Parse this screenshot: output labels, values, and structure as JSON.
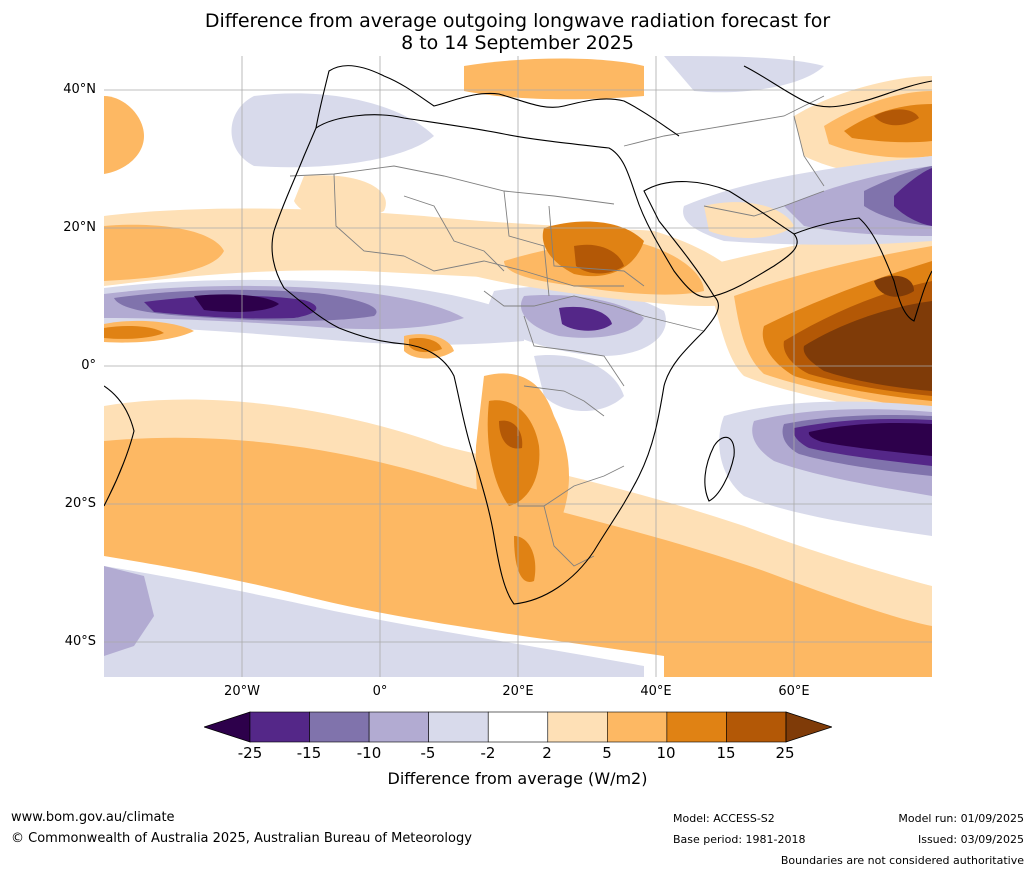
{
  "title": {
    "line1": "Difference from average outgoing longwave radiation forecast for",
    "line2": "8 to 14 September 2025"
  },
  "map": {
    "lat_labels": [
      "40°N",
      "20°N",
      "0°",
      "20°S",
      "40°S"
    ],
    "lon_labels": [
      "20°W",
      "0°",
      "20°E",
      "40°E",
      "60°E"
    ]
  },
  "colorbar": {
    "title": "Difference from average (W/m2)",
    "ticks": [
      "-25",
      "-15",
      "-10",
      "-5",
      "-2",
      "2",
      "5",
      "10",
      "15",
      "25"
    ],
    "colors": [
      "#2d004b",
      "#542788",
      "#8073ac",
      "#b2abd2",
      "#d8daeb",
      "#ffffff",
      "#fee0b6",
      "#fdb863",
      "#e08214",
      "#b35806",
      "#7f3b08"
    ]
  },
  "footer": {
    "website": "www.bom.gov.au/climate",
    "copyright": "© Commonwealth of Australia 2025, Australian Bureau of Meteorology",
    "model": "Model: ACCESS-S2",
    "base_period": "Base period: 1981-2018",
    "model_run": "Model run: 01/09/2025",
    "issued": "Issued: 03/09/2025",
    "disclaimer": "Boundaries are not considered authoritative"
  }
}
